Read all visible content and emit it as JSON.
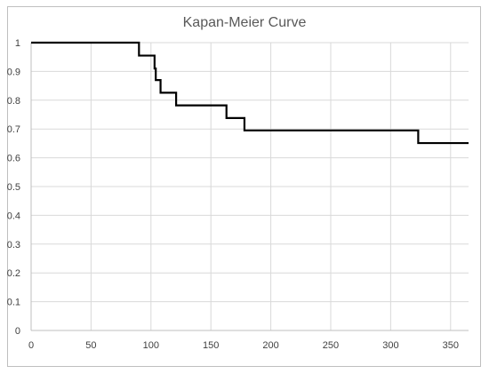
{
  "chart_data": {
    "type": "line",
    "title": "Kapan-Meier Curve",
    "xlabel": "",
    "ylabel": "",
    "xlim": [
      0,
      365
    ],
    "ylim": [
      0,
      1
    ],
    "x_ticks": [
      0,
      50,
      100,
      150,
      200,
      250,
      300,
      350
    ],
    "y_ticks": [
      0,
      0.1,
      0.2,
      0.3,
      0.4,
      0.5,
      0.6,
      0.7,
      0.8,
      0.9,
      1
    ],
    "x_tick_labels": [
      "0",
      "50",
      "100",
      "150",
      "200",
      "250",
      "300",
      "350"
    ],
    "y_tick_labels": [
      "0",
      "0.1",
      "0.2",
      "0.3",
      "0.4",
      "0.5",
      "0.6",
      "0.7",
      "0.8",
      "0.9",
      "1"
    ],
    "grid": true,
    "legend": "none",
    "step": true,
    "series": [
      {
        "x": [
          0,
          90,
          103,
          104,
          105,
          108,
          121,
          163,
          178,
          323,
          365
        ],
        "y": [
          1.0,
          0.955,
          0.91,
          0.87,
          0.87,
          0.826,
          0.782,
          0.738,
          0.695,
          0.651,
          0.651
        ],
        "color": "#000000"
      }
    ],
    "colors": {
      "grid": "#d9d9d9",
      "axis": "#bfbfbf",
      "line": "#000000",
      "text": "#404040",
      "title": "#595959"
    }
  }
}
